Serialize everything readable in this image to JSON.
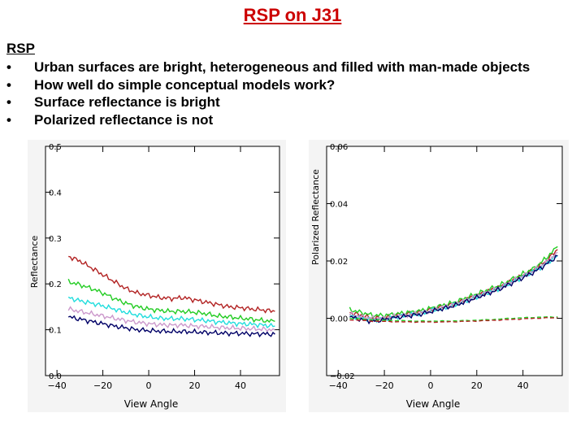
{
  "title": "RSP on J31",
  "heading": "RSP",
  "bullets": [
    "Urban surfaces are bright, heterogeneous and filled with man-made objects",
    "How well do simple conceptual models work?",
    "Surface reflectance is bright",
    "Polarized reflectance is not"
  ],
  "bullet_symbol": "•",
  "chart_data": [
    {
      "type": "line",
      "xlabel": "View Angle",
      "ylabel": "Reflectance",
      "xlim": [
        -45,
        57
      ],
      "ylim": [
        0.0,
        0.5
      ],
      "xticks": [
        -40,
        -20,
        0,
        20,
        40
      ],
      "xtick_labels": [
        "−40",
        "−20",
        "0",
        "20",
        "40"
      ],
      "yticks": [
        0.0,
        0.1,
        0.2,
        0.3,
        0.4,
        0.5
      ],
      "ytick_labels": [
        "0.0",
        "0.1",
        "0.2",
        "0.3",
        "0.4",
        "0.5"
      ],
      "series": [
        {
          "name": "red",
          "color": "#b22222",
          "x": [
            -35,
            -30,
            -25,
            -20,
            -15,
            -10,
            -5,
            0,
            5,
            10,
            15,
            20,
            25,
            30,
            35,
            40,
            45,
            50,
            55
          ],
          "y": [
            0.26,
            0.25,
            0.235,
            0.22,
            0.205,
            0.19,
            0.18,
            0.175,
            0.17,
            0.168,
            0.17,
            0.165,
            0.16,
            0.155,
            0.15,
            0.148,
            0.145,
            0.143,
            0.14
          ]
        },
        {
          "name": "green",
          "color": "#22cc22",
          "x": [
            -35,
            -30,
            -25,
            -20,
            -15,
            -10,
            -5,
            0,
            5,
            10,
            15,
            20,
            25,
            30,
            35,
            40,
            45,
            50,
            55
          ],
          "y": [
            0.205,
            0.198,
            0.19,
            0.18,
            0.168,
            0.158,
            0.15,
            0.145,
            0.142,
            0.14,
            0.14,
            0.138,
            0.135,
            0.13,
            0.128,
            0.125,
            0.123,
            0.12,
            0.118
          ]
        },
        {
          "name": "cyan",
          "color": "#22dddd",
          "x": [
            -35,
            -30,
            -25,
            -20,
            -15,
            -10,
            -5,
            0,
            5,
            10,
            15,
            20,
            25,
            30,
            35,
            40,
            45,
            50,
            55
          ],
          "y": [
            0.17,
            0.163,
            0.158,
            0.152,
            0.145,
            0.138,
            0.132,
            0.128,
            0.125,
            0.124,
            0.124,
            0.122,
            0.12,
            0.117,
            0.115,
            0.113,
            0.112,
            0.11,
            0.108
          ]
        },
        {
          "name": "violet",
          "color": "#cc99cc",
          "x": [
            -35,
            -30,
            -25,
            -20,
            -15,
            -10,
            -5,
            0,
            5,
            10,
            15,
            20,
            25,
            30,
            35,
            40,
            45,
            50,
            55
          ],
          "y": [
            0.145,
            0.14,
            0.135,
            0.13,
            0.125,
            0.12,
            0.116,
            0.113,
            0.111,
            0.11,
            0.11,
            0.108,
            0.107,
            0.105,
            0.104,
            0.103,
            0.102,
            0.101,
            0.1
          ]
        },
        {
          "name": "navy",
          "color": "#000066",
          "x": [
            -35,
            -30,
            -25,
            -20,
            -15,
            -10,
            -5,
            0,
            5,
            10,
            15,
            20,
            25,
            30,
            35,
            40,
            45,
            50,
            55
          ],
          "y": [
            0.128,
            0.123,
            0.118,
            0.113,
            0.108,
            0.104,
            0.1,
            0.098,
            0.097,
            0.096,
            0.096,
            0.095,
            0.094,
            0.093,
            0.092,
            0.092,
            0.091,
            0.091,
            0.09
          ]
        }
      ]
    },
    {
      "type": "line",
      "xlabel": "View Angle",
      "ylabel": "Polarized Reflectance",
      "xlim": [
        -45,
        57
      ],
      "ylim": [
        -0.02,
        0.06
      ],
      "xticks": [
        -40,
        -20,
        0,
        20,
        40
      ],
      "xtick_labels": [
        "−40",
        "−20",
        "0",
        "20",
        "40"
      ],
      "yticks": [
        -0.02,
        0.0,
        0.02,
        0.04,
        0.06
      ],
      "ytick_labels": [
        "−0.02",
        "0.00",
        "0.02",
        "0.04",
        "0.06"
      ],
      "series": [
        {
          "name": "red",
          "color": "#b22222",
          "x": [
            -35,
            -30,
            -25,
            -20,
            -15,
            -10,
            -5,
            0,
            5,
            10,
            15,
            20,
            25,
            30,
            35,
            40,
            45,
            50,
            55
          ],
          "y": [
            0.002,
            0.001,
            0.0,
            0.0,
            0.001,
            0.0015,
            0.002,
            0.003,
            0.004,
            0.005,
            0.0065,
            0.008,
            0.0095,
            0.011,
            0.013,
            0.015,
            0.017,
            0.02,
            0.024
          ]
        },
        {
          "name": "green",
          "color": "#22cc22",
          "x": [
            -35,
            -30,
            -25,
            -20,
            -15,
            -10,
            -5,
            0,
            5,
            10,
            15,
            20,
            25,
            30,
            35,
            40,
            45,
            50,
            55
          ],
          "y": [
            0.003,
            0.002,
            0.001,
            0.001,
            0.0015,
            0.002,
            0.0025,
            0.0035,
            0.0045,
            0.0055,
            0.007,
            0.0085,
            0.01,
            0.0115,
            0.0135,
            0.0155,
            0.0175,
            0.021,
            0.025
          ]
        },
        {
          "name": "cyan",
          "color": "#22dddd",
          "x": [
            -35,
            -30,
            -25,
            -20,
            -15,
            -10,
            -5,
            0,
            5,
            10,
            15,
            20,
            25,
            30,
            35,
            40,
            45,
            50,
            55
          ],
          "y": [
            0.001,
            0.0,
            -0.0005,
            -0.0005,
            0.0005,
            0.001,
            0.0015,
            0.0025,
            0.0035,
            0.0045,
            0.006,
            0.0075,
            0.009,
            0.0105,
            0.0125,
            0.0145,
            0.0165,
            0.019,
            0.022
          ]
        },
        {
          "name": "violet",
          "color": "#cc99cc",
          "x": [
            -35,
            -30,
            -25,
            -20,
            -15,
            -10,
            -5,
            0,
            5,
            10,
            15,
            20,
            25,
            30,
            35,
            40,
            45,
            50,
            55
          ],
          "y": [
            0.0015,
            0.0005,
            0.0,
            0.0,
            0.0008,
            0.0012,
            0.0018,
            0.0028,
            0.0038,
            0.0048,
            0.0062,
            0.0078,
            0.0092,
            0.0108,
            0.0128,
            0.0148,
            0.0168,
            0.0195,
            0.023
          ]
        },
        {
          "name": "navy",
          "color": "#000066",
          "x": [
            -35,
            -30,
            -25,
            -20,
            -15,
            -10,
            -5,
            0,
            5,
            10,
            15,
            20,
            25,
            30,
            35,
            40,
            45,
            50,
            55
          ],
          "y": [
            0.0005,
            -0.0005,
            -0.001,
            -0.0005,
            0.0003,
            0.0008,
            0.0013,
            0.0023,
            0.0033,
            0.0043,
            0.0057,
            0.0072,
            0.0087,
            0.0102,
            0.0122,
            0.0142,
            0.0162,
            0.0188,
            0.0218
          ]
        },
        {
          "name": "green-dashed",
          "color": "#22cc22",
          "dashed": true,
          "x": [
            -35,
            -25,
            -15,
            -5,
            5,
            15,
            25,
            35,
            45,
            55
          ],
          "y": [
            0.0,
            -0.0005,
            -0.0008,
            -0.001,
            -0.001,
            -0.0008,
            -0.0005,
            0.0,
            0.0003,
            0.0005
          ]
        },
        {
          "name": "red-dashed",
          "color": "#b22222",
          "dashed": true,
          "x": [
            -35,
            -25,
            -15,
            -5,
            5,
            15,
            25,
            35,
            45,
            55
          ],
          "y": [
            -0.0005,
            -0.001,
            -0.0012,
            -0.0013,
            -0.0013,
            -0.0011,
            -0.0008,
            -0.0004,
            0.0,
            0.0002
          ]
        }
      ]
    }
  ]
}
